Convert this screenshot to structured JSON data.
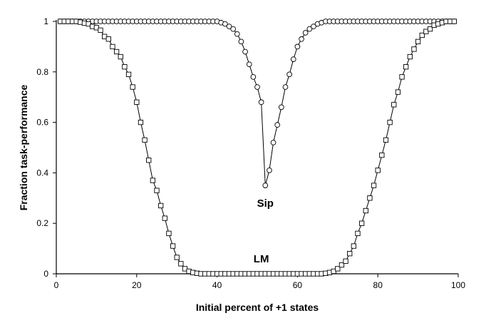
{
  "chart_data": {
    "type": "line",
    "xlabel": "Initial percent of +1 states",
    "ylabel": "Fraction task-performance",
    "xlim": [
      0,
      100
    ],
    "ylim": [
      0,
      1
    ],
    "xticks": [
      0,
      20,
      40,
      60,
      80,
      100
    ],
    "yticks": [
      0,
      0.2,
      0.4,
      0.6,
      0.8,
      1
    ],
    "ytick_labels": [
      "0",
      "0.2",
      "0.4",
      "0.6",
      "0.8",
      "1"
    ],
    "grid": false,
    "series": [
      {
        "name": "Sip",
        "marker": "circle",
        "label_at": [
          52,
          0.28
        ],
        "x": [
          1,
          2,
          3,
          4,
          5,
          6,
          7,
          8,
          9,
          10,
          11,
          12,
          13,
          14,
          15,
          16,
          17,
          18,
          19,
          20,
          21,
          22,
          23,
          24,
          25,
          26,
          27,
          28,
          29,
          30,
          31,
          32,
          33,
          34,
          35,
          36,
          37,
          38,
          39,
          40,
          41,
          42,
          43,
          44,
          45,
          46,
          47,
          48,
          49,
          50,
          51,
          52,
          53,
          54,
          55,
          56,
          57,
          58,
          59,
          60,
          61,
          62,
          63,
          64,
          65,
          66,
          67,
          68,
          69,
          70,
          71,
          72,
          73,
          74,
          75,
          76,
          77,
          78,
          79,
          80,
          81,
          82,
          83,
          84,
          85,
          86,
          87,
          88,
          89,
          90,
          91,
          92,
          93,
          94,
          95,
          96,
          97,
          98,
          99
        ],
        "y": [
          1,
          1,
          1,
          1,
          1,
          1,
          1,
          1,
          1,
          1,
          1,
          1,
          1,
          1,
          1,
          1,
          1,
          1,
          1,
          1,
          1,
          1,
          1,
          1,
          1,
          1,
          1,
          1,
          1,
          1,
          1,
          1,
          1,
          1,
          1,
          1,
          1,
          1,
          1,
          1,
          0.995,
          0.99,
          0.98,
          0.97,
          0.95,
          0.92,
          0.88,
          0.83,
          0.78,
          0.74,
          0.68,
          0.35,
          0.41,
          0.52,
          0.59,
          0.66,
          0.74,
          0.79,
          0.85,
          0.9,
          0.93,
          0.955,
          0.97,
          0.98,
          0.99,
          0.995,
          1,
          1,
          1,
          1,
          1,
          1,
          1,
          1,
          1,
          1,
          1,
          1,
          1,
          1,
          1,
          1,
          1,
          1,
          1,
          1,
          1,
          1,
          1,
          1,
          1,
          1,
          1,
          1,
          1,
          1,
          1,
          1,
          1
        ]
      },
      {
        "name": "LM",
        "marker": "square",
        "label_at": [
          51,
          0.06
        ],
        "x": [
          1,
          2,
          3,
          4,
          5,
          6,
          7,
          8,
          9,
          10,
          11,
          12,
          13,
          14,
          15,
          16,
          17,
          18,
          19,
          20,
          21,
          22,
          23,
          24,
          25,
          26,
          27,
          28,
          29,
          30,
          31,
          32,
          33,
          34,
          35,
          36,
          37,
          38,
          39,
          40,
          41,
          42,
          43,
          44,
          45,
          46,
          47,
          48,
          49,
          50,
          51,
          52,
          53,
          54,
          55,
          56,
          57,
          58,
          59,
          60,
          61,
          62,
          63,
          64,
          65,
          66,
          67,
          68,
          69,
          70,
          71,
          72,
          73,
          74,
          75,
          76,
          77,
          78,
          79,
          80,
          81,
          82,
          83,
          84,
          85,
          86,
          87,
          88,
          89,
          90,
          91,
          92,
          93,
          94,
          95,
          96,
          97,
          98,
          99
        ],
        "y": [
          1,
          1,
          1,
          1,
          1,
          0.997,
          0.993,
          0.99,
          0.98,
          0.975,
          0.965,
          0.94,
          0.93,
          0.9,
          0.88,
          0.86,
          0.82,
          0.79,
          0.74,
          0.68,
          0.6,
          0.53,
          0.45,
          0.37,
          0.33,
          0.27,
          0.22,
          0.16,
          0.11,
          0.065,
          0.04,
          0.02,
          0.01,
          0.005,
          0.002,
          0,
          0,
          0,
          0,
          0,
          0,
          0,
          0,
          0,
          0,
          0,
          0,
          0,
          0,
          0,
          0,
          0,
          0,
          0,
          0,
          0,
          0,
          0,
          0,
          0,
          0,
          0,
          0,
          0,
          0,
          0,
          0.002,
          0.005,
          0.01,
          0.02,
          0.035,
          0.05,
          0.08,
          0.11,
          0.16,
          0.2,
          0.25,
          0.3,
          0.35,
          0.41,
          0.47,
          0.53,
          0.6,
          0.67,
          0.72,
          0.78,
          0.82,
          0.86,
          0.89,
          0.92,
          0.945,
          0.96,
          0.97,
          0.985,
          0.99,
          0.995,
          1,
          1,
          1
        ]
      }
    ]
  }
}
